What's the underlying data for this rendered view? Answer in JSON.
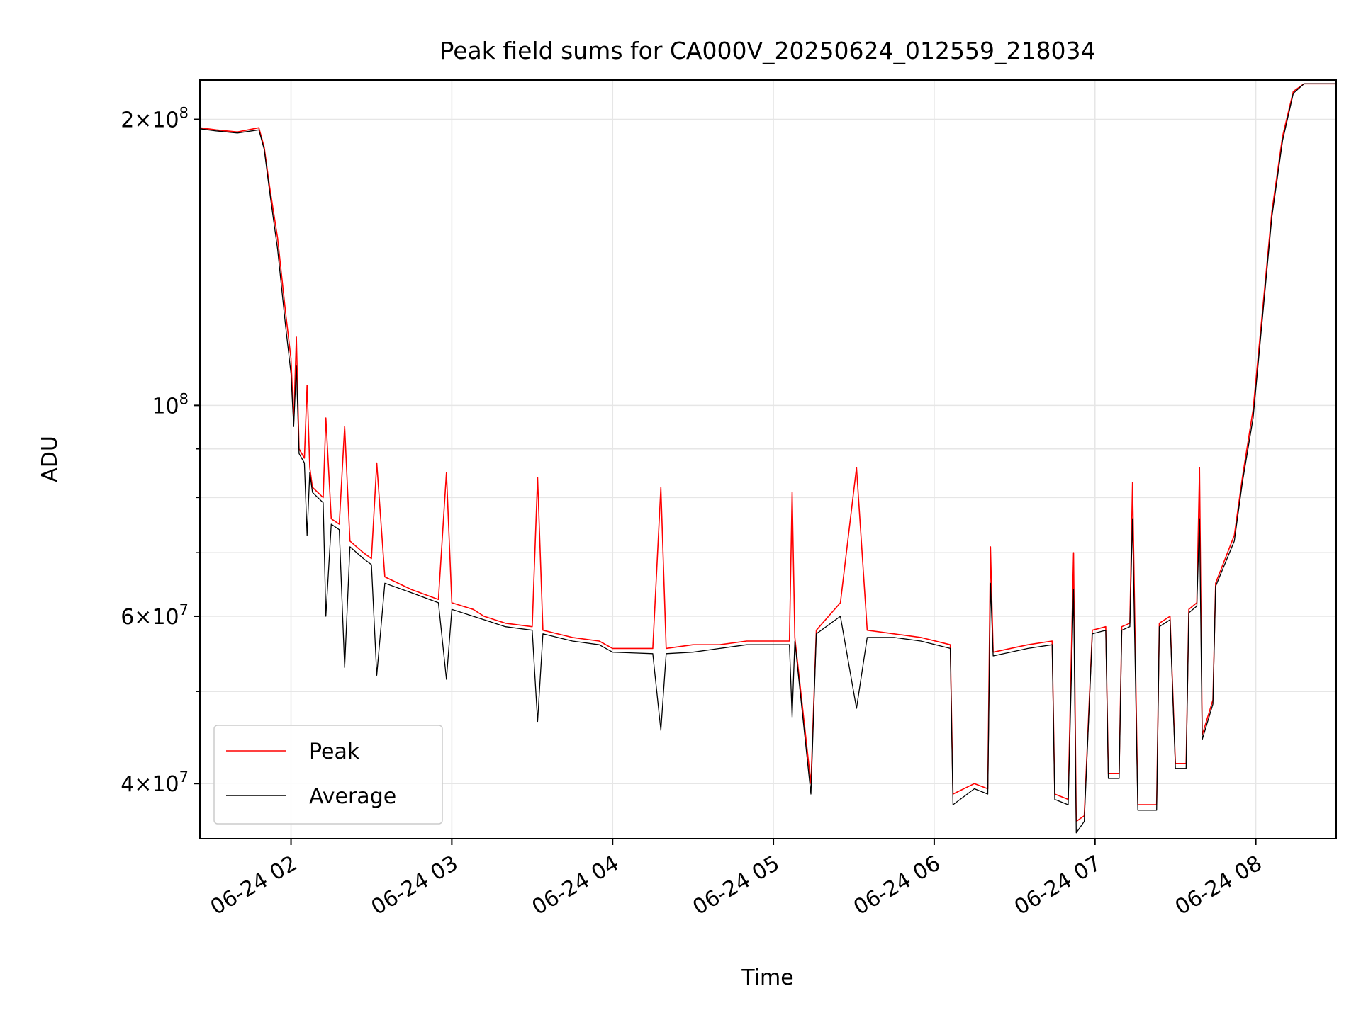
{
  "chart_data": {
    "type": "line",
    "title": "Peak field sums for CA000V_20250624_012559_218034",
    "xlabel": "Time",
    "ylabel": "ADU",
    "x_scale": "time",
    "y_scale": "log",
    "xlim": [
      "2025-06-24 01:26",
      "2025-06-24 08:30"
    ],
    "ylim": [
      35000000,
      220000000
    ],
    "grid": true,
    "legend_position": "lower-left",
    "x_ticks": [
      {
        "value": "2025-06-24 02:00",
        "label": "06-24 02"
      },
      {
        "value": "2025-06-24 03:00",
        "label": "06-24 03"
      },
      {
        "value": "2025-06-24 04:00",
        "label": "06-24 04"
      },
      {
        "value": "2025-06-24 05:00",
        "label": "06-24 05"
      },
      {
        "value": "2025-06-24 06:00",
        "label": "06-24 06"
      },
      {
        "value": "2025-06-24 07:00",
        "label": "06-24 07"
      },
      {
        "value": "2025-06-24 08:00",
        "label": "06-24 08"
      }
    ],
    "y_ticks_major": [
      {
        "value": 40000000,
        "base": "4",
        "exp": "7"
      },
      {
        "value": 60000000,
        "base": "6",
        "exp": "7"
      },
      {
        "value": 100000000,
        "base": "",
        "exp": "8"
      },
      {
        "value": 200000000,
        "base": "2",
        "exp": "8"
      }
    ],
    "y_ticks_minor": [
      50000000,
      70000000,
      80000000,
      90000000
    ],
    "series": [
      {
        "name": "Peak",
        "color": "#ff0000",
        "points": [
          [
            "2025-06-24 01:26",
            196000000
          ],
          [
            "2025-06-24 01:32",
            195000000
          ],
          [
            "2025-06-24 01:40",
            194000000
          ],
          [
            "2025-06-24 01:48",
            196000000
          ],
          [
            "2025-06-24 01:50",
            187000000
          ],
          [
            "2025-06-24 01:52",
            170000000
          ],
          [
            "2025-06-24 01:55",
            150000000
          ],
          [
            "2025-06-24 01:58",
            125000000
          ],
          [
            "2025-06-24 02:00",
            112000000
          ],
          [
            "2025-06-24 02:01",
            96000000
          ],
          [
            "2025-06-24 02:02",
            118000000
          ],
          [
            "2025-06-24 02:03",
            90000000
          ],
          [
            "2025-06-24 02:05",
            88000000
          ],
          [
            "2025-06-24 02:06",
            105000000
          ],
          [
            "2025-06-24 02:07",
            86000000
          ],
          [
            "2025-06-24 02:08",
            82000000
          ],
          [
            "2025-06-24 02:12",
            80000000
          ],
          [
            "2025-06-24 02:13",
            97000000
          ],
          [
            "2025-06-24 02:15",
            76000000
          ],
          [
            "2025-06-24 02:18",
            75000000
          ],
          [
            "2025-06-24 02:20",
            95000000
          ],
          [
            "2025-06-24 02:22",
            72000000
          ],
          [
            "2025-06-24 02:27",
            70000000
          ],
          [
            "2025-06-24 02:30",
            69000000
          ],
          [
            "2025-06-24 02:32",
            87000000
          ],
          [
            "2025-06-24 02:35",
            66000000
          ],
          [
            "2025-06-24 02:45",
            64000000
          ],
          [
            "2025-06-24 02:55",
            62500000
          ],
          [
            "2025-06-24 02:58",
            85000000
          ],
          [
            "2025-06-24 03:00",
            62000000
          ],
          [
            "2025-06-24 03:08",
            61000000
          ],
          [
            "2025-06-24 03:12",
            60000000
          ],
          [
            "2025-06-24 03:20",
            59000000
          ],
          [
            "2025-06-24 03:30",
            58500000
          ],
          [
            "2025-06-24 03:32",
            84000000
          ],
          [
            "2025-06-24 03:34",
            58000000
          ],
          [
            "2025-06-24 03:45",
            57000000
          ],
          [
            "2025-06-24 03:55",
            56500000
          ],
          [
            "2025-06-24 04:00",
            55500000
          ],
          [
            "2025-06-24 04:15",
            55500000
          ],
          [
            "2025-06-24 04:18",
            82000000
          ],
          [
            "2025-06-24 04:20",
            55500000
          ],
          [
            "2025-06-24 04:30",
            56000000
          ],
          [
            "2025-06-24 04:40",
            56000000
          ],
          [
            "2025-06-24 04:50",
            56500000
          ],
          [
            "2025-06-24 05:00",
            56500000
          ],
          [
            "2025-06-24 05:06",
            56500000
          ],
          [
            "2025-06-24 05:07",
            81000000
          ],
          [
            "2025-06-24 05:08",
            57000000
          ],
          [
            "2025-06-24 05:14",
            40000000
          ],
          [
            "2025-06-24 05:16",
            58000000
          ],
          [
            "2025-06-24 05:25",
            62000000
          ],
          [
            "2025-06-24 05:31",
            86000000
          ],
          [
            "2025-06-24 05:35",
            58000000
          ],
          [
            "2025-06-24 05:45",
            57500000
          ],
          [
            "2025-06-24 05:55",
            57000000
          ],
          [
            "2025-06-24 06:06",
            56000000
          ],
          [
            "2025-06-24 06:07",
            39000000
          ],
          [
            "2025-06-24 06:15",
            40000000
          ],
          [
            "2025-06-24 06:20",
            39500000
          ],
          [
            "2025-06-24 06:21",
            71000000
          ],
          [
            "2025-06-24 06:22",
            55000000
          ],
          [
            "2025-06-24 06:35",
            56000000
          ],
          [
            "2025-06-24 06:44",
            56500000
          ],
          [
            "2025-06-24 06:45",
            39000000
          ],
          [
            "2025-06-24 06:50",
            38500000
          ],
          [
            "2025-06-24 06:52",
            70000000
          ],
          [
            "2025-06-24 06:53",
            36500000
          ],
          [
            "2025-06-24 06:56",
            37000000
          ],
          [
            "2025-06-24 06:59",
            58000000
          ],
          [
            "2025-06-24 07:04",
            58500000
          ],
          [
            "2025-06-24 07:05",
            41000000
          ],
          [
            "2025-06-24 07:09",
            41000000
          ],
          [
            "2025-06-24 07:10",
            58500000
          ],
          [
            "2025-06-24 07:13",
            59000000
          ],
          [
            "2025-06-24 07:14",
            83000000
          ],
          [
            "2025-06-24 07:16",
            38000000
          ],
          [
            "2025-06-24 07:23",
            38000000
          ],
          [
            "2025-06-24 07:24",
            59000000
          ],
          [
            "2025-06-24 07:28",
            60000000
          ],
          [
            "2025-06-24 07:30",
            42000000
          ],
          [
            "2025-06-24 07:34",
            42000000
          ],
          [
            "2025-06-24 07:35",
            61000000
          ],
          [
            "2025-06-24 07:38",
            62000000
          ],
          [
            "2025-06-24 07:39",
            86000000
          ],
          [
            "2025-06-24 07:40",
            45000000
          ],
          [
            "2025-06-24 07:44",
            49000000
          ],
          [
            "2025-06-24 07:45",
            65000000
          ],
          [
            "2025-06-24 07:52",
            73000000
          ],
          [
            "2025-06-24 07:55",
            84000000
          ],
          [
            "2025-06-24 07:59",
            99000000
          ],
          [
            "2025-06-24 08:03",
            130000000
          ],
          [
            "2025-06-24 08:06",
            160000000
          ],
          [
            "2025-06-24 08:10",
            192000000
          ],
          [
            "2025-06-24 08:14",
            214000000
          ],
          [
            "2025-06-24 08:18",
            218000000
          ],
          [
            "2025-06-24 08:30",
            218000000
          ]
        ]
      },
      {
        "name": "Average",
        "color": "#000000",
        "points": [
          [
            "2025-06-24 01:26",
            195500000
          ],
          [
            "2025-06-24 01:32",
            194500000
          ],
          [
            "2025-06-24 01:40",
            193500000
          ],
          [
            "2025-06-24 01:48",
            195000000
          ],
          [
            "2025-06-24 01:50",
            186000000
          ],
          [
            "2025-06-24 01:52",
            168000000
          ],
          [
            "2025-06-24 01:55",
            146000000
          ],
          [
            "2025-06-24 01:58",
            121000000
          ],
          [
            "2025-06-24 02:00",
            108000000
          ],
          [
            "2025-06-24 02:01",
            95000000
          ],
          [
            "2025-06-24 02:02",
            110000000
          ],
          [
            "2025-06-24 02:03",
            89000000
          ],
          [
            "2025-06-24 02:05",
            87000000
          ],
          [
            "2025-06-24 02:06",
            73000000
          ],
          [
            "2025-06-24 02:07",
            85000000
          ],
          [
            "2025-06-24 02:08",
            81000000
          ],
          [
            "2025-06-24 02:12",
            79000000
          ],
          [
            "2025-06-24 02:13",
            60000000
          ],
          [
            "2025-06-24 02:15",
            75000000
          ],
          [
            "2025-06-24 02:18",
            74000000
          ],
          [
            "2025-06-24 02:20",
            53000000
          ],
          [
            "2025-06-24 02:22",
            71000000
          ],
          [
            "2025-06-24 02:27",
            69000000
          ],
          [
            "2025-06-24 02:30",
            68000000
          ],
          [
            "2025-06-24 02:32",
            52000000
          ],
          [
            "2025-06-24 02:35",
            65000000
          ],
          [
            "2025-06-24 02:45",
            63500000
          ],
          [
            "2025-06-24 02:55",
            62000000
          ],
          [
            "2025-06-24 02:58",
            51500000
          ],
          [
            "2025-06-24 03:00",
            61000000
          ],
          [
            "2025-06-24 03:08",
            60000000
          ],
          [
            "2025-06-24 03:12",
            59500000
          ],
          [
            "2025-06-24 03:20",
            58500000
          ],
          [
            "2025-06-24 03:30",
            58000000
          ],
          [
            "2025-06-24 03:32",
            46500000
          ],
          [
            "2025-06-24 03:34",
            57500000
          ],
          [
            "2025-06-24 03:45",
            56500000
          ],
          [
            "2025-06-24 03:55",
            56000000
          ],
          [
            "2025-06-24 04:00",
            55000000
          ],
          [
            "2025-06-24 04:15",
            54800000
          ],
          [
            "2025-06-24 04:18",
            45500000
          ],
          [
            "2025-06-24 04:20",
            54800000
          ],
          [
            "2025-06-24 04:30",
            55000000
          ],
          [
            "2025-06-24 04:40",
            55500000
          ],
          [
            "2025-06-24 04:50",
            56000000
          ],
          [
            "2025-06-24 05:00",
            56000000
          ],
          [
            "2025-06-24 05:06",
            56000000
          ],
          [
            "2025-06-24 05:07",
            47000000
          ],
          [
            "2025-06-24 05:08",
            56500000
          ],
          [
            "2025-06-24 05:14",
            39000000
          ],
          [
            "2025-06-24 05:16",
            57500000
          ],
          [
            "2025-06-24 05:25",
            60000000
          ],
          [
            "2025-06-24 05:31",
            48000000
          ],
          [
            "2025-06-24 05:35",
            57000000
          ],
          [
            "2025-06-24 05:45",
            57000000
          ],
          [
            "2025-06-24 05:55",
            56500000
          ],
          [
            "2025-06-24 06:06",
            55500000
          ],
          [
            "2025-06-24 06:07",
            38000000
          ],
          [
            "2025-06-24 06:15",
            39500000
          ],
          [
            "2025-06-24 06:20",
            39000000
          ],
          [
            "2025-06-24 06:21",
            65000000
          ],
          [
            "2025-06-24 06:22",
            54500000
          ],
          [
            "2025-06-24 06:35",
            55500000
          ],
          [
            "2025-06-24 06:44",
            56000000
          ],
          [
            "2025-06-24 06:45",
            38500000
          ],
          [
            "2025-06-24 06:50",
            38000000
          ],
          [
            "2025-06-24 06:52",
            64000000
          ],
          [
            "2025-06-24 06:53",
            35500000
          ],
          [
            "2025-06-24 06:56",
            36500000
          ],
          [
            "2025-06-24 06:59",
            57500000
          ],
          [
            "2025-06-24 07:04",
            58000000
          ],
          [
            "2025-06-24 07:05",
            40500000
          ],
          [
            "2025-06-24 07:09",
            40500000
          ],
          [
            "2025-06-24 07:10",
            58000000
          ],
          [
            "2025-06-24 07:13",
            58500000
          ],
          [
            "2025-06-24 07:14",
            76000000
          ],
          [
            "2025-06-24 07:16",
            37500000
          ],
          [
            "2025-06-24 07:23",
            37500000
          ],
          [
            "2025-06-24 07:24",
            58500000
          ],
          [
            "2025-06-24 07:28",
            59500000
          ],
          [
            "2025-06-24 07:30",
            41500000
          ],
          [
            "2025-06-24 07:34",
            41500000
          ],
          [
            "2025-06-24 07:35",
            60500000
          ],
          [
            "2025-06-24 07:38",
            61500000
          ],
          [
            "2025-06-24 07:39",
            76000000
          ],
          [
            "2025-06-24 07:40",
            44500000
          ],
          [
            "2025-06-24 07:44",
            48500000
          ],
          [
            "2025-06-24 07:45",
            64500000
          ],
          [
            "2025-06-24 07:52",
            72000000
          ],
          [
            "2025-06-24 07:55",
            83000000
          ],
          [
            "2025-06-24 07:59",
            97000000
          ],
          [
            "2025-06-24 08:03",
            128000000
          ],
          [
            "2025-06-24 08:06",
            158000000
          ],
          [
            "2025-06-24 08:10",
            190000000
          ],
          [
            "2025-06-24 08:14",
            213000000
          ],
          [
            "2025-06-24 08:18",
            218000000
          ],
          [
            "2025-06-24 08:30",
            218000000
          ]
        ]
      }
    ]
  }
}
